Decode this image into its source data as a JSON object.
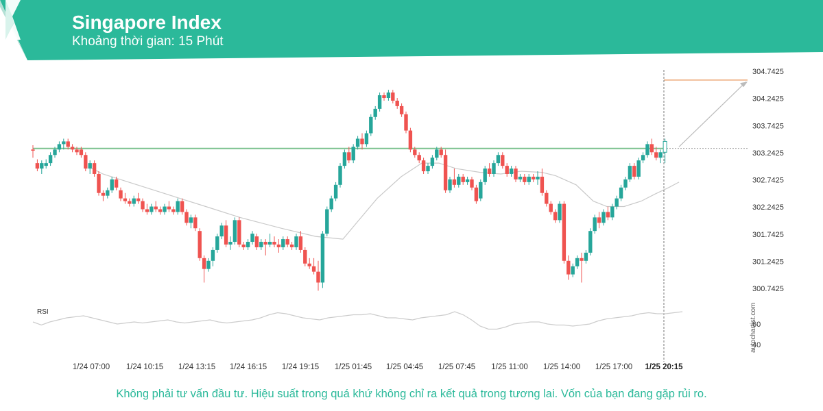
{
  "header": {
    "title": "Singapore Index",
    "subtitle": "Khoảng thời gian: 15 Phút"
  },
  "colors": {
    "brand": "#2bb99a",
    "bull": "#26a69a",
    "bear": "#ef5350",
    "support": "#7cc28f",
    "target": "#e8955a",
    "ma": "#c9c9c9"
  },
  "footer": {
    "disclaimer": "Không phải tư vấn đầu tư. Hiệu suất trong quá khứ không chỉ ra kết quả trong tương lai. Vốn của bạn đang gặp rủi ro."
  },
  "watermark": "autochartist.com",
  "chart_data": {
    "type": "candlestick",
    "price_axis": {
      "ticks": [
        "304.7425",
        "304.2425",
        "303.7425",
        "303.2425",
        "302.7425",
        "302.2425",
        "301.7425",
        "301.2425",
        "300.7425"
      ],
      "min": 300.6,
      "max": 304.85
    },
    "x_ticks": [
      "1/24 07:00",
      "1/24 10:15",
      "1/24 13:15",
      "1/24 16:15",
      "1/24 19:15",
      "1/25 01:45",
      "1/25 04:45",
      "1/25 07:45",
      "1/25 11:00",
      "1/25 14:00",
      "1/25 17:00",
      "1/25 20:15"
    ],
    "current_time_label": "1/25 20:15",
    "support_level": 303.32,
    "target_level": 304.58,
    "projection": {
      "from": 303.35,
      "to": 304.55
    },
    "candles": [
      [
        303.3,
        303.38,
        303.15,
        303.28
      ],
      [
        303.05,
        303.12,
        302.9,
        302.95
      ],
      [
        302.95,
        303.1,
        302.85,
        303.05
      ],
      [
        303.0,
        303.12,
        302.95,
        303.05
      ],
      [
        303.05,
        303.25,
        303.0,
        303.2
      ],
      [
        303.2,
        303.35,
        303.15,
        303.3
      ],
      [
        303.3,
        303.45,
        303.25,
        303.4
      ],
      [
        303.4,
        303.5,
        303.3,
        303.45
      ],
      [
        303.45,
        303.5,
        303.3,
        303.35
      ],
      [
        303.35,
        303.4,
        303.25,
        303.3
      ],
      [
        303.3,
        303.35,
        303.2,
        303.25
      ],
      [
        303.3,
        303.35,
        303.15,
        303.2
      ],
      [
        303.2,
        303.25,
        302.9,
        302.95
      ],
      [
        302.95,
        303.1,
        302.85,
        303.05
      ],
      [
        303.05,
        303.1,
        302.8,
        302.85
      ],
      [
        302.85,
        302.9,
        302.45,
        302.5
      ],
      [
        302.5,
        302.55,
        302.35,
        302.45
      ],
      [
        302.45,
        302.6,
        302.4,
        302.55
      ],
      [
        302.55,
        302.8,
        302.5,
        302.75
      ],
      [
        302.75,
        302.8,
        302.55,
        302.6
      ],
      [
        302.55,
        302.6,
        302.35,
        302.4
      ],
      [
        302.4,
        302.5,
        302.3,
        302.35
      ],
      [
        302.35,
        302.4,
        302.25,
        302.3
      ],
      [
        302.3,
        302.45,
        302.25,
        302.4
      ],
      [
        302.4,
        302.5,
        302.3,
        302.35
      ],
      [
        302.35,
        302.4,
        302.15,
        302.2
      ],
      [
        302.2,
        302.3,
        302.1,
        302.15
      ],
      [
        302.15,
        302.3,
        302.1,
        302.25
      ],
      [
        302.25,
        302.35,
        302.15,
        302.2
      ],
      [
        302.2,
        302.25,
        302.1,
        302.15
      ],
      [
        302.15,
        302.3,
        302.1,
        302.25
      ],
      [
        302.25,
        302.35,
        302.15,
        302.2
      ],
      [
        302.2,
        302.25,
        302.1,
        302.15
      ],
      [
        302.15,
        302.4,
        302.1,
        302.35
      ],
      [
        302.35,
        302.4,
        302.1,
        302.15
      ],
      [
        302.15,
        302.2,
        301.9,
        301.95
      ],
      [
        301.95,
        302.1,
        301.85,
        302.05
      ],
      [
        302.05,
        302.1,
        301.8,
        301.85
      ],
      [
        301.8,
        301.85,
        301.25,
        301.3
      ],
      [
        301.3,
        301.35,
        300.85,
        301.1
      ],
      [
        301.1,
        301.3,
        301.05,
        301.25
      ],
      [
        301.25,
        301.5,
        301.15,
        301.45
      ],
      [
        301.45,
        301.75,
        301.4,
        301.7
      ],
      [
        301.7,
        301.95,
        301.65,
        301.9
      ],
      [
        301.9,
        302.0,
        301.5,
        301.55
      ],
      [
        301.55,
        301.7,
        301.45,
        301.6
      ],
      [
        301.6,
        302.05,
        301.55,
        302.0
      ],
      [
        302.0,
        302.05,
        301.5,
        301.55
      ],
      [
        301.55,
        301.6,
        301.45,
        301.5
      ],
      [
        301.5,
        301.65,
        301.45,
        301.6
      ],
      [
        301.6,
        301.8,
        301.55,
        301.75
      ],
      [
        301.7,
        301.75,
        301.45,
        301.5
      ],
      [
        301.5,
        301.65,
        301.45,
        301.6
      ],
      [
        301.6,
        301.65,
        301.35,
        301.55
      ],
      [
        301.55,
        301.75,
        301.5,
        301.6
      ],
      [
        301.6,
        301.7,
        301.5,
        301.55
      ],
      [
        301.55,
        301.65,
        301.4,
        301.5
      ],
      [
        301.5,
        301.7,
        301.45,
        301.65
      ],
      [
        301.65,
        301.7,
        301.5,
        301.55
      ],
      [
        301.55,
        301.6,
        301.45,
        301.5
      ],
      [
        301.5,
        301.75,
        301.45,
        301.7
      ],
      [
        301.7,
        301.8,
        301.4,
        301.45
      ],
      [
        301.45,
        301.5,
        301.15,
        301.2
      ],
      [
        301.2,
        301.3,
        301.1,
        301.15
      ],
      [
        301.15,
        301.3,
        301.0,
        301.05
      ],
      [
        301.05,
        301.25,
        300.7,
        300.85
      ],
      [
        300.85,
        301.8,
        300.75,
        301.75
      ],
      [
        301.75,
        302.25,
        301.7,
        302.2
      ],
      [
        302.2,
        302.45,
        302.15,
        302.4
      ],
      [
        302.4,
        302.7,
        302.35,
        302.65
      ],
      [
        302.65,
        303.05,
        302.6,
        303.0
      ],
      [
        303.0,
        303.3,
        302.95,
        303.25
      ],
      [
        303.25,
        303.35,
        303.05,
        303.1
      ],
      [
        303.1,
        303.4,
        303.05,
        303.35
      ],
      [
        303.35,
        303.55,
        303.3,
        303.5
      ],
      [
        303.5,
        303.6,
        303.3,
        303.4
      ],
      [
        303.4,
        303.65,
        303.35,
        303.6
      ],
      [
        303.6,
        303.95,
        303.55,
        303.9
      ],
      [
        303.9,
        304.1,
        303.85,
        304.05
      ],
      [
        304.05,
        304.35,
        304.0,
        304.3
      ],
      [
        304.3,
        304.35,
        304.2,
        304.25
      ],
      [
        304.25,
        304.4,
        304.2,
        304.35
      ],
      [
        304.35,
        304.4,
        304.15,
        304.2
      ],
      [
        304.2,
        304.25,
        304.05,
        304.1
      ],
      [
        304.1,
        304.15,
        303.9,
        303.95
      ],
      [
        303.95,
        304.0,
        303.6,
        303.65
      ],
      [
        303.65,
        303.7,
        303.25,
        303.3
      ],
      [
        303.3,
        303.35,
        303.15,
        303.2
      ],
      [
        303.2,
        303.25,
        303.05,
        303.1
      ],
      [
        303.1,
        303.15,
        302.85,
        302.9
      ],
      [
        302.9,
        303.05,
        302.85,
        303.0
      ],
      [
        303.0,
        303.2,
        302.95,
        303.15
      ],
      [
        303.15,
        303.35,
        303.1,
        303.3
      ],
      [
        303.3,
        303.35,
        303.15,
        303.2
      ],
      [
        303.2,
        303.3,
        302.5,
        302.55
      ],
      [
        302.55,
        302.8,
        302.5,
        302.75
      ],
      [
        302.75,
        302.95,
        302.6,
        302.65
      ],
      [
        302.65,
        302.85,
        302.6,
        302.8
      ],
      [
        302.8,
        302.85,
        302.65,
        302.7
      ],
      [
        302.7,
        302.8,
        302.65,
        302.75
      ],
      [
        302.75,
        302.8,
        302.55,
        302.6
      ],
      [
        302.6,
        302.65,
        302.3,
        302.35
      ],
      [
        302.4,
        302.75,
        302.35,
        302.7
      ],
      [
        302.7,
        303.0,
        302.65,
        302.95
      ],
      [
        302.95,
        303.05,
        302.8,
        302.85
      ],
      [
        302.85,
        303.1,
        302.8,
        303.05
      ],
      [
        303.05,
        303.25,
        303.0,
        303.2
      ],
      [
        303.2,
        303.25,
        302.95,
        303.0
      ],
      [
        303.0,
        303.05,
        302.8,
        302.85
      ],
      [
        302.85,
        303.0,
        302.8,
        302.95
      ],
      [
        302.95,
        303.0,
        302.7,
        302.75
      ],
      [
        302.75,
        302.85,
        302.7,
        302.8
      ],
      [
        302.8,
        302.85,
        302.65,
        302.7
      ],
      [
        302.7,
        302.85,
        302.65,
        302.8
      ],
      [
        302.8,
        302.85,
        302.7,
        302.75
      ],
      [
        302.75,
        302.9,
        302.65,
        302.8
      ],
      [
        302.8,
        302.95,
        302.45,
        302.5
      ],
      [
        302.5,
        302.55,
        302.25,
        302.3
      ],
      [
        302.3,
        302.35,
        302.1,
        302.15
      ],
      [
        302.15,
        302.2,
        301.95,
        302.0
      ],
      [
        302.0,
        302.35,
        301.95,
        302.3
      ],
      [
        302.3,
        302.35,
        301.2,
        301.25
      ],
      [
        301.25,
        301.35,
        300.9,
        301.0
      ],
      [
        301.0,
        301.2,
        300.95,
        301.15
      ],
      [
        301.15,
        301.35,
        301.1,
        301.3
      ],
      [
        301.3,
        301.4,
        300.85,
        301.25
      ],
      [
        301.25,
        301.45,
        301.2,
        301.4
      ],
      [
        301.4,
        301.85,
        301.35,
        301.8
      ],
      [
        301.8,
        302.1,
        301.75,
        302.05
      ],
      [
        302.05,
        302.15,
        301.85,
        301.95
      ],
      [
        301.95,
        302.2,
        301.9,
        302.15
      ],
      [
        302.15,
        302.25,
        302.0,
        302.05
      ],
      [
        302.05,
        302.3,
        302.0,
        302.25
      ],
      [
        302.25,
        302.45,
        302.2,
        302.4
      ],
      [
        302.4,
        302.65,
        302.35,
        302.6
      ],
      [
        302.6,
        302.8,
        302.55,
        302.75
      ],
      [
        302.75,
        303.05,
        302.7,
        303.0
      ],
      [
        303.0,
        303.05,
        302.75,
        302.8
      ],
      [
        302.8,
        303.15,
        302.75,
        303.1
      ],
      [
        303.1,
        303.25,
        303.05,
        303.2
      ],
      [
        303.2,
        303.45,
        303.15,
        303.4
      ],
      [
        303.4,
        303.5,
        303.2,
        303.25
      ],
      [
        303.25,
        303.35,
        303.1,
        303.15
      ],
      [
        303.15,
        303.3,
        303.05,
        303.25
      ],
      [
        303.25,
        303.5,
        303.05,
        303.45
      ]
    ],
    "ma": [
      [
        302.98,
        130
      ],
      [
        302.85,
        150
      ],
      [
        302.65,
        200
      ],
      [
        302.45,
        250
      ],
      [
        302.25,
        300
      ],
      [
        302.05,
        350
      ],
      [
        301.85,
        410
      ],
      [
        301.7,
        460
      ],
      [
        301.65,
        500
      ],
      [
        301.95,
        520
      ],
      [
        302.4,
        550
      ],
      [
        302.8,
        585
      ],
      [
        303.05,
        615
      ],
      [
        303.05,
        640
      ],
      [
        302.95,
        665
      ],
      [
        302.88,
        700
      ],
      [
        302.85,
        730
      ],
      [
        302.9,
        760
      ],
      [
        302.88,
        790
      ],
      [
        302.82,
        810
      ],
      [
        302.65,
        840
      ],
      [
        302.35,
        865
      ],
      [
        302.25,
        885
      ],
      [
        302.25,
        910
      ],
      [
        302.35,
        935
      ],
      [
        302.48,
        955
      ],
      [
        302.6,
        975
      ],
      [
        302.7,
        990
      ]
    ],
    "rsi": {
      "label": "RSI",
      "ticks": [
        "60",
        "40"
      ],
      "values": [
        62,
        59,
        62,
        64,
        66,
        67,
        68,
        66,
        64,
        62,
        60,
        61,
        62,
        61,
        62,
        63,
        64,
        62,
        61,
        62,
        63,
        64,
        62,
        61,
        62,
        63,
        64,
        66,
        69,
        71,
        70,
        68,
        66,
        65,
        64,
        66,
        67,
        68,
        69,
        69,
        70,
        68,
        66,
        66,
        65,
        64,
        66,
        67,
        68,
        69,
        72,
        69,
        64,
        58,
        55,
        55,
        57,
        60,
        61,
        62,
        62,
        60,
        59,
        59,
        58,
        59,
        60,
        63,
        65,
        66,
        67,
        68,
        70,
        71,
        70,
        70,
        71,
        72
      ]
    }
  }
}
